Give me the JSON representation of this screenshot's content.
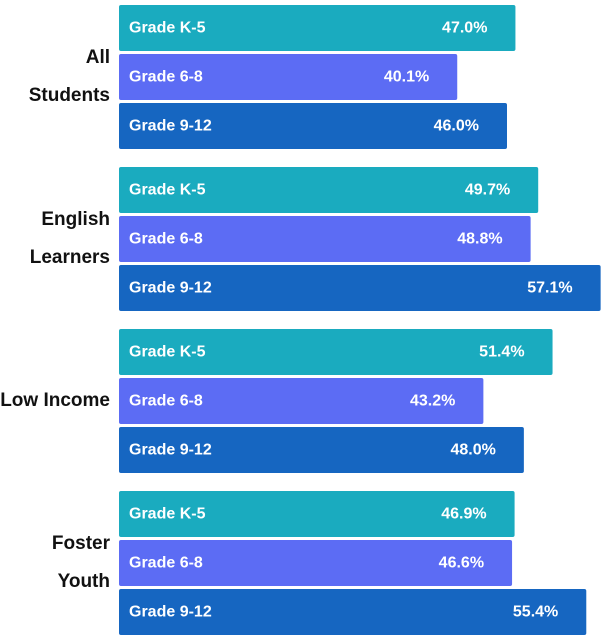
{
  "chart_data": {
    "type": "grouped-bar-horizontal",
    "categories": [
      "All Students",
      "English Learners",
      "Low Income",
      "Foster Youth"
    ],
    "series": [
      {
        "name": "Grade K-5",
        "color": "#1aabbf",
        "values": [
          47.0,
          49.7,
          51.4,
          46.9
        ],
        "value_labels": [
          "47.0%",
          "49.7%",
          "51.4%",
          "46.9%"
        ]
      },
      {
        "name": "Grade 6-8",
        "color": "#5c6cf4",
        "values": [
          40.1,
          48.8,
          43.2,
          46.6
        ],
        "value_labels": [
          "40.1%",
          "48.8%",
          "43.2%",
          "46.6%"
        ]
      },
      {
        "name": "Grade 9-12",
        "color": "#1666c1",
        "values": [
          46.0,
          57.1,
          48.0,
          55.4
        ],
        "value_labels": [
          "46.0%",
          "57.1%",
          "48.0%",
          "55.4%"
        ]
      }
    ],
    "xlim": [
      0,
      57.5
    ]
  }
}
